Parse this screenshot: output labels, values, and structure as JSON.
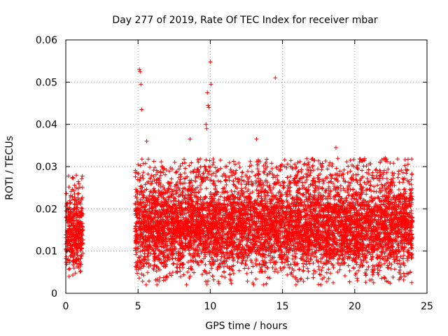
{
  "chart_data": {
    "type": "scatter",
    "title": "Day 277 of 2019, Rate Of TEC Index for receiver mbar",
    "xlabel": "GPS time / hours",
    "ylabel": "ROTI / TECUs",
    "xlim": [
      0,
      25
    ],
    "ylim": [
      0,
      0.06
    ],
    "x_ticks": [
      0,
      5,
      10,
      15,
      20,
      25
    ],
    "x_tick_labels": [
      "0",
      "5",
      "10",
      "15",
      "20",
      "25"
    ],
    "y_ticks": [
      0,
      0.01,
      0.02,
      0.03,
      0.04,
      0.05,
      0.06
    ],
    "y_tick_labels": [
      "0",
      "0.01",
      "0.02",
      "0.03",
      "0.04",
      "0.05",
      "0.06"
    ],
    "grid": true,
    "marker": "+",
    "series": [
      {
        "color": "#ff0000",
        "dense_band": [
          {
            "x_start": 0.0,
            "x_end": 1.2,
            "y_low": 0.003,
            "y_high": 0.026
          },
          {
            "x_start": 4.8,
            "x_end": 24.0,
            "y_low": 0.002,
            "y_high": 0.03
          }
        ],
        "x": [
          5.1,
          5.15,
          5.2,
          5.25,
          5.6,
          9.8,
          9.85,
          9.9,
          10.0,
          10.05,
          9.7,
          9.75,
          14.5,
          8.6,
          13.2,
          18.7,
          19.7
        ],
        "y": [
          0.053,
          0.0525,
          0.0495,
          0.0435,
          0.036,
          0.0475,
          0.0445,
          0.044,
          0.0548,
          0.0495,
          0.04,
          0.039,
          0.051,
          0.0365,
          0.0365,
          0.0345,
          0.0315
        ]
      }
    ]
  }
}
